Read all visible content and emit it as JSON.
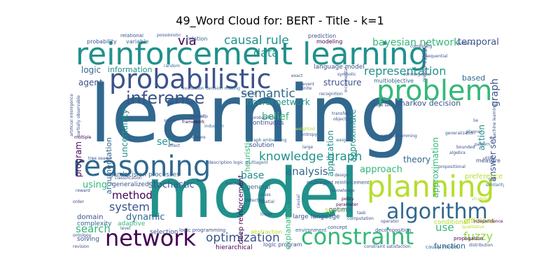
{
  "title": "49_Word Cloud for: BERT - Title - k=1",
  "palette": {
    "dark_purple": "#440154",
    "indigo": "#3b528b",
    "blue": "#31688e",
    "teal": "#21918c",
    "green": "#35b779",
    "light_green": "#90d743",
    "yellow_green": "#b5de2b",
    "gray": "#999999"
  },
  "words": [
    {
      "text": "learning",
      "color": "#31688e"
    },
    {
      "text": "model",
      "color": "#21918c"
    },
    {
      "text": "reinforcement learning",
      "color": "#21918c"
    },
    {
      "text": "probabilistic",
      "color": "#3b528b"
    },
    {
      "text": "reasoning",
      "color": "#31688e"
    },
    {
      "text": "problem",
      "color": "#35b779"
    },
    {
      "text": "planning",
      "color": "#b5de2b"
    },
    {
      "text": "algorithm",
      "color": "#31688e"
    },
    {
      "text": "constraint",
      "color": "#35b779"
    },
    {
      "text": "network",
      "color": "#440154"
    },
    {
      "text": "inference",
      "color": "#3b528b"
    },
    {
      "text": "knowledge graph",
      "color": "#21918c"
    },
    {
      "text": "optimization",
      "color": "#3b528b"
    },
    {
      "text": "representation",
      "color": "#21918c"
    },
    {
      "text": "causal rule",
      "color": "#21918c"
    },
    {
      "text": "bayesian network",
      "color": "#35b779"
    },
    {
      "text": "semantic",
      "color": "#31688e"
    },
    {
      "text": "data",
      "color": "#21918c"
    },
    {
      "text": "via",
      "color": "#440154"
    },
    {
      "text": "system",
      "color": "#3b528b"
    },
    {
      "text": "analysis",
      "color": "#31688e"
    },
    {
      "text": "method",
      "color": "#440154"
    },
    {
      "text": "search",
      "color": "#35b779"
    },
    {
      "text": "fuzzy",
      "color": "#90d743"
    },
    {
      "text": "use",
      "color": "#35b779"
    },
    {
      "text": "set",
      "color": "#21918c"
    },
    {
      "text": "graph",
      "color": "#3b528b"
    },
    {
      "text": "approach",
      "color": "#35b779"
    },
    {
      "text": "temporal",
      "color": "#3b528b"
    },
    {
      "text": "structure",
      "color": "#3b528b"
    },
    {
      "text": "neural network",
      "color": "#21918c"
    },
    {
      "text": "belief",
      "color": "#35b779"
    },
    {
      "text": "markov decision",
      "color": "#3b528b"
    },
    {
      "text": "logic",
      "color": "#31688e"
    },
    {
      "text": "information",
      "color": "#21918c"
    },
    {
      "text": "agent",
      "color": "#3b528b"
    },
    {
      "text": "uncertainty",
      "color": "#21918c"
    },
    {
      "text": "argumentation",
      "color": "#31688e"
    },
    {
      "text": "program",
      "color": "#440154"
    },
    {
      "text": "dynamic",
      "color": "#31688e"
    },
    {
      "text": "stochastic",
      "color": "#3b528b"
    },
    {
      "text": "base",
      "color": "#21918c"
    },
    {
      "text": "using",
      "color": "#35b779"
    },
    {
      "text": "theory",
      "color": "#31688e"
    },
    {
      "text": "application",
      "color": "#21918c"
    },
    {
      "text": "approximate",
      "color": "#21918c"
    },
    {
      "text": "approximation",
      "color": "#35b779"
    },
    {
      "text": "answer set",
      "color": "#3b528b"
    },
    {
      "text": "action",
      "color": "#21918c"
    },
    {
      "text": "efficient",
      "color": "#b5de2b"
    },
    {
      "text": "function",
      "color": "#31688e"
    },
    {
      "text": "based",
      "color": "#31688e"
    },
    {
      "text": "domain",
      "color": "#3b528b"
    },
    {
      "text": "adaptive",
      "color": "#35b779"
    },
    {
      "text": "complexity",
      "color": "#31688e"
    },
    {
      "text": "solving",
      "color": "#3b528b"
    },
    {
      "text": "selection",
      "color": "#3b528b"
    },
    {
      "text": "hierarchical",
      "color": "#440154"
    },
    {
      "text": "logic program",
      "color": "#3b528b"
    },
    {
      "text": "space",
      "color": "#b5de2b"
    },
    {
      "text": "optimal",
      "color": "#31688e"
    },
    {
      "text": "large language",
      "color": "#3b528b"
    },
    {
      "text": "explanation",
      "color": "#35b779"
    },
    {
      "text": "game",
      "color": "#31688e"
    },
    {
      "text": "decision processes",
      "color": "#31688e"
    },
    {
      "text": "continuous",
      "color": "#3b528b"
    },
    {
      "text": "solution",
      "color": "#3b528b"
    },
    {
      "text": "general",
      "color": "#31688e"
    },
    {
      "text": "deep reinforcement",
      "color": "#440154"
    },
    {
      "text": "heuristic",
      "color": "#35b779"
    },
    {
      "text": "language model",
      "color": "#3b528b"
    },
    {
      "text": "multiobjective",
      "color": "#31688e"
    },
    {
      "text": "preference",
      "color": "#b5de2b"
    },
    {
      "text": "conditional",
      "color": "#b5de2b"
    },
    {
      "text": "generalized",
      "color": "#3b528b"
    },
    {
      "text": "probability",
      "color": "#3b528b"
    },
    {
      "text": "variable",
      "color": "#31688e"
    },
    {
      "text": "relational",
      "color": "#3b528b"
    },
    {
      "text": "relation",
      "color": "#31688e"
    },
    {
      "text": "modeling",
      "color": "#440154"
    },
    {
      "text": "prediction",
      "color": "#3b528b"
    },
    {
      "text": "measure",
      "color": "#3b528b"
    },
    {
      "text": "abstraction",
      "color": "#b5de2b"
    },
    {
      "text": "multiagent reinforcement",
      "color": "#3b528b"
    },
    {
      "text": "logic programming",
      "color": "#3b528b"
    },
    {
      "text": "propagation",
      "color": "#440154"
    },
    {
      "text": "decomposition",
      "color": "#3b528b"
    },
    {
      "text": "environment",
      "color": "#31688e"
    },
    {
      "text": "concept",
      "color": "#3b528b"
    },
    {
      "text": "causal model",
      "color": "#31688e"
    },
    {
      "text": "evaluation",
      "color": "#3b528b"
    },
    {
      "text": "decision making",
      "color": "#31688e"
    },
    {
      "text": "classification",
      "color": "#3b528b"
    },
    {
      "text": "framework",
      "color": "#440154"
    },
    {
      "text": "partial",
      "color": "#3b528b"
    },
    {
      "text": "solver",
      "color": "#3b528b"
    },
    {
      "text": "probabilities",
      "color": "#3b528b"
    },
    {
      "text": "graph embedding",
      "color": "#31688e"
    },
    {
      "text": "multiagent",
      "color": "#31688e"
    },
    {
      "text": "detection",
      "color": "#3b528b"
    },
    {
      "text": "knowledge",
      "color": "#3b528b"
    },
    {
      "text": "policy",
      "color": "#440154"
    },
    {
      "text": "parameter",
      "color": "#440154"
    },
    {
      "text": "computation",
      "color": "#3b528b"
    },
    {
      "text": "operator",
      "color": "#3b528b"
    },
    {
      "text": "strategy",
      "color": "#b5de2b"
    },
    {
      "text": "qualitative",
      "color": "#b5de2b"
    },
    {
      "text": "independence",
      "color": "#440154"
    },
    {
      "text": "distribution",
      "color": "#3b528b"
    },
    {
      "text": "similarity",
      "color": "#31688e"
    },
    {
      "text": "algebra",
      "color": "#3b528b"
    },
    {
      "text": "bounded",
      "color": "#3b528b"
    },
    {
      "text": "soft",
      "color": "#3b528b"
    },
    {
      "text": "weighted",
      "color": "#b5de2b"
    },
    {
      "text": "entropy",
      "color": "#3b528b"
    },
    {
      "text": "weight",
      "color": "#31688e"
    },
    {
      "text": "recognition",
      "color": "#3b528b"
    },
    {
      "text": "induction",
      "color": "#31688e"
    },
    {
      "text": "reward",
      "color": "#3b528b"
    },
    {
      "text": "tree search",
      "color": "#3b528b"
    },
    {
      "text": "multiple",
      "color": "#440154"
    },
    {
      "text": "random",
      "color": "#31688e"
    },
    {
      "text": "linear",
      "color": "#3b528b"
    },
    {
      "text": "task",
      "color": "#3b528b"
    },
    {
      "text": "hybrid",
      "color": "#3b528b"
    },
    {
      "text": "exact",
      "color": "#3b528b"
    },
    {
      "text": "finite",
      "color": "#3b528b"
    },
    {
      "text": "transfer",
      "color": "#3b528b"
    },
    {
      "text": "object",
      "color": "#3b528b"
    },
    {
      "text": "feature",
      "color": "#3b528b"
    },
    {
      "text": "design",
      "color": "#3b528b"
    },
    {
      "text": "large",
      "color": "#3b528b"
    },
    {
      "text": "class",
      "color": "#3b528b"
    },
    {
      "text": "spatial",
      "color": "#3b528b"
    },
    {
      "text": "revision",
      "color": "#3b528b"
    },
    {
      "text": "level",
      "color": "#3b528b"
    },
    {
      "text": "ontology",
      "color": "#3b528b"
    },
    {
      "text": "order",
      "color": "#3b528b"
    },
    {
      "text": "machine",
      "color": "#3b528b"
    },
    {
      "text": "effect",
      "color": "#3b528b"
    },
    {
      "text": "pomdp",
      "color": "#3b528b"
    },
    {
      "text": "utility",
      "color": "#3b528b"
    },
    {
      "text": "propositional",
      "color": "#3b528b"
    },
    {
      "text": "set programming",
      "color": "#3b528b"
    },
    {
      "text": "rough set",
      "color": "#3b528b"
    },
    {
      "text": "generalization",
      "color": "#3b528b"
    },
    {
      "text": "pattern",
      "color": "#3b528b"
    },
    {
      "text": "convergence",
      "color": "#3b528b"
    },
    {
      "text": "symbolic",
      "color": "#3b528b"
    },
    {
      "text": "sequential",
      "color": "#3b528b"
    },
    {
      "text": "event",
      "color": "#3b528b"
    },
    {
      "text": "combining",
      "color": "#3b528b"
    },
    {
      "text": "evidence",
      "color": "#3b528b"
    },
    {
      "text": "reasoning about",
      "color": "#3b528b"
    },
    {
      "text": "artificial intelligence",
      "color": "#3b528b"
    },
    {
      "text": "partially observable",
      "color": "#3b528b"
    },
    {
      "text": "instance",
      "color": "#3b528b"
    },
    {
      "text": "machine learning",
      "color": "#3b528b"
    },
    {
      "text": "planner",
      "color": "#3b528b"
    },
    {
      "text": "constraint satisfaction",
      "color": "#3b528b"
    },
    {
      "text": "description logic",
      "color": "#3b528b"
    },
    {
      "text": "incremental",
      "color": "#3b528b"
    },
    {
      "text": "causal",
      "color": "#3b528b"
    },
    {
      "text": "lie",
      "color": "#3b528b"
    },
    {
      "text": "possibilistic",
      "color": "#3b528b"
    }
  ]
}
